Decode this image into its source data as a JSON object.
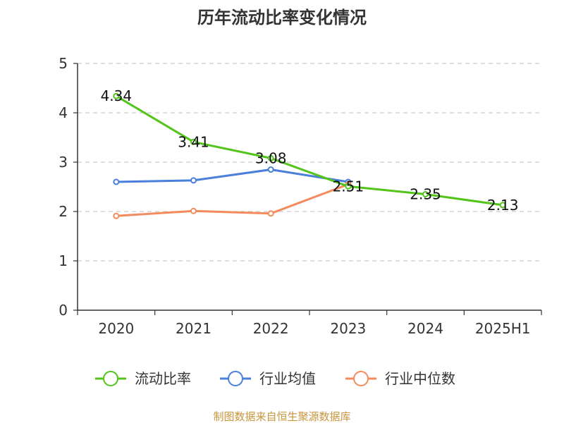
{
  "chart_data": {
    "type": "line",
    "title": "历年流动比率变化情况",
    "categories": [
      "2020",
      "2021",
      "2022",
      "2023",
      "2024",
      "2025H1"
    ],
    "ylim": [
      0,
      5
    ],
    "yticks": [
      "0",
      "1",
      "2",
      "3",
      "4",
      "5"
    ],
    "grid": true,
    "legend_position": "bottom",
    "series": [
      {
        "name": "流动比率",
        "color": "#52c41a",
        "values": [
          4.34,
          3.41,
          3.08,
          2.51,
          2.35,
          2.13
        ],
        "labels": [
          "4.34",
          "3.41",
          "3.08",
          "2.51",
          "2.35",
          "2.13"
        ]
      },
      {
        "name": "行业均值",
        "color": "#4a7fdc",
        "values": [
          2.6,
          2.63,
          2.85,
          2.6,
          null,
          null
        ]
      },
      {
        "name": "行业中位数",
        "color": "#f48b5c",
        "values": [
          1.91,
          2.01,
          1.96,
          2.55,
          null,
          null
        ]
      }
    ]
  },
  "footer": {
    "source": "制图数据来自恒生聚源数据库"
  }
}
